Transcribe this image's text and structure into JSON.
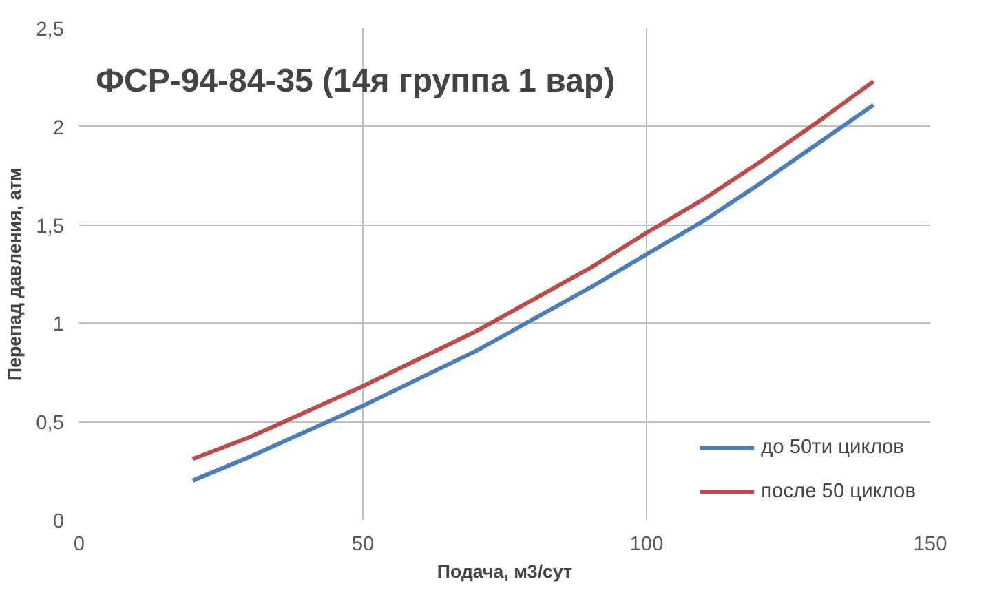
{
  "chart_data": {
    "type": "line",
    "title": "ФСР-94-84-35 (14я группа 1 вар)",
    "xlabel": "Подача, м3/сут",
    "ylabel": "Перепад давления, атм",
    "x": [
      20,
      30,
      40,
      50,
      60,
      70,
      80,
      90,
      100,
      110,
      120,
      130,
      140
    ],
    "series": [
      {
        "name": "до 50ти циклов",
        "color": "#4a7ebb",
        "values": [
          0.2,
          0.32,
          0.45,
          0.58,
          0.72,
          0.86,
          1.02,
          1.18,
          1.35,
          1.52,
          1.71,
          1.91,
          2.11
        ]
      },
      {
        "name": "после 50 циклов",
        "color": "#be4b48",
        "values": [
          0.31,
          0.42,
          0.55,
          0.68,
          0.82,
          0.96,
          1.12,
          1.28,
          1.46,
          1.63,
          1.82,
          2.02,
          2.23
        ]
      }
    ],
    "xlim": [
      0,
      150
    ],
    "xticks": [
      0,
      50,
      100,
      150
    ],
    "ylim": [
      0,
      2.5
    ],
    "yticks": [
      0,
      {
        "value": 0.5,
        "label": "0,5"
      },
      1,
      {
        "value": 1.5,
        "label": "1,5"
      },
      2,
      {
        "value": 2.5,
        "label": "2,5"
      }
    ],
    "grid": true,
    "legend": "bottom right",
    "marker": "none",
    "line_style": "solid"
  }
}
